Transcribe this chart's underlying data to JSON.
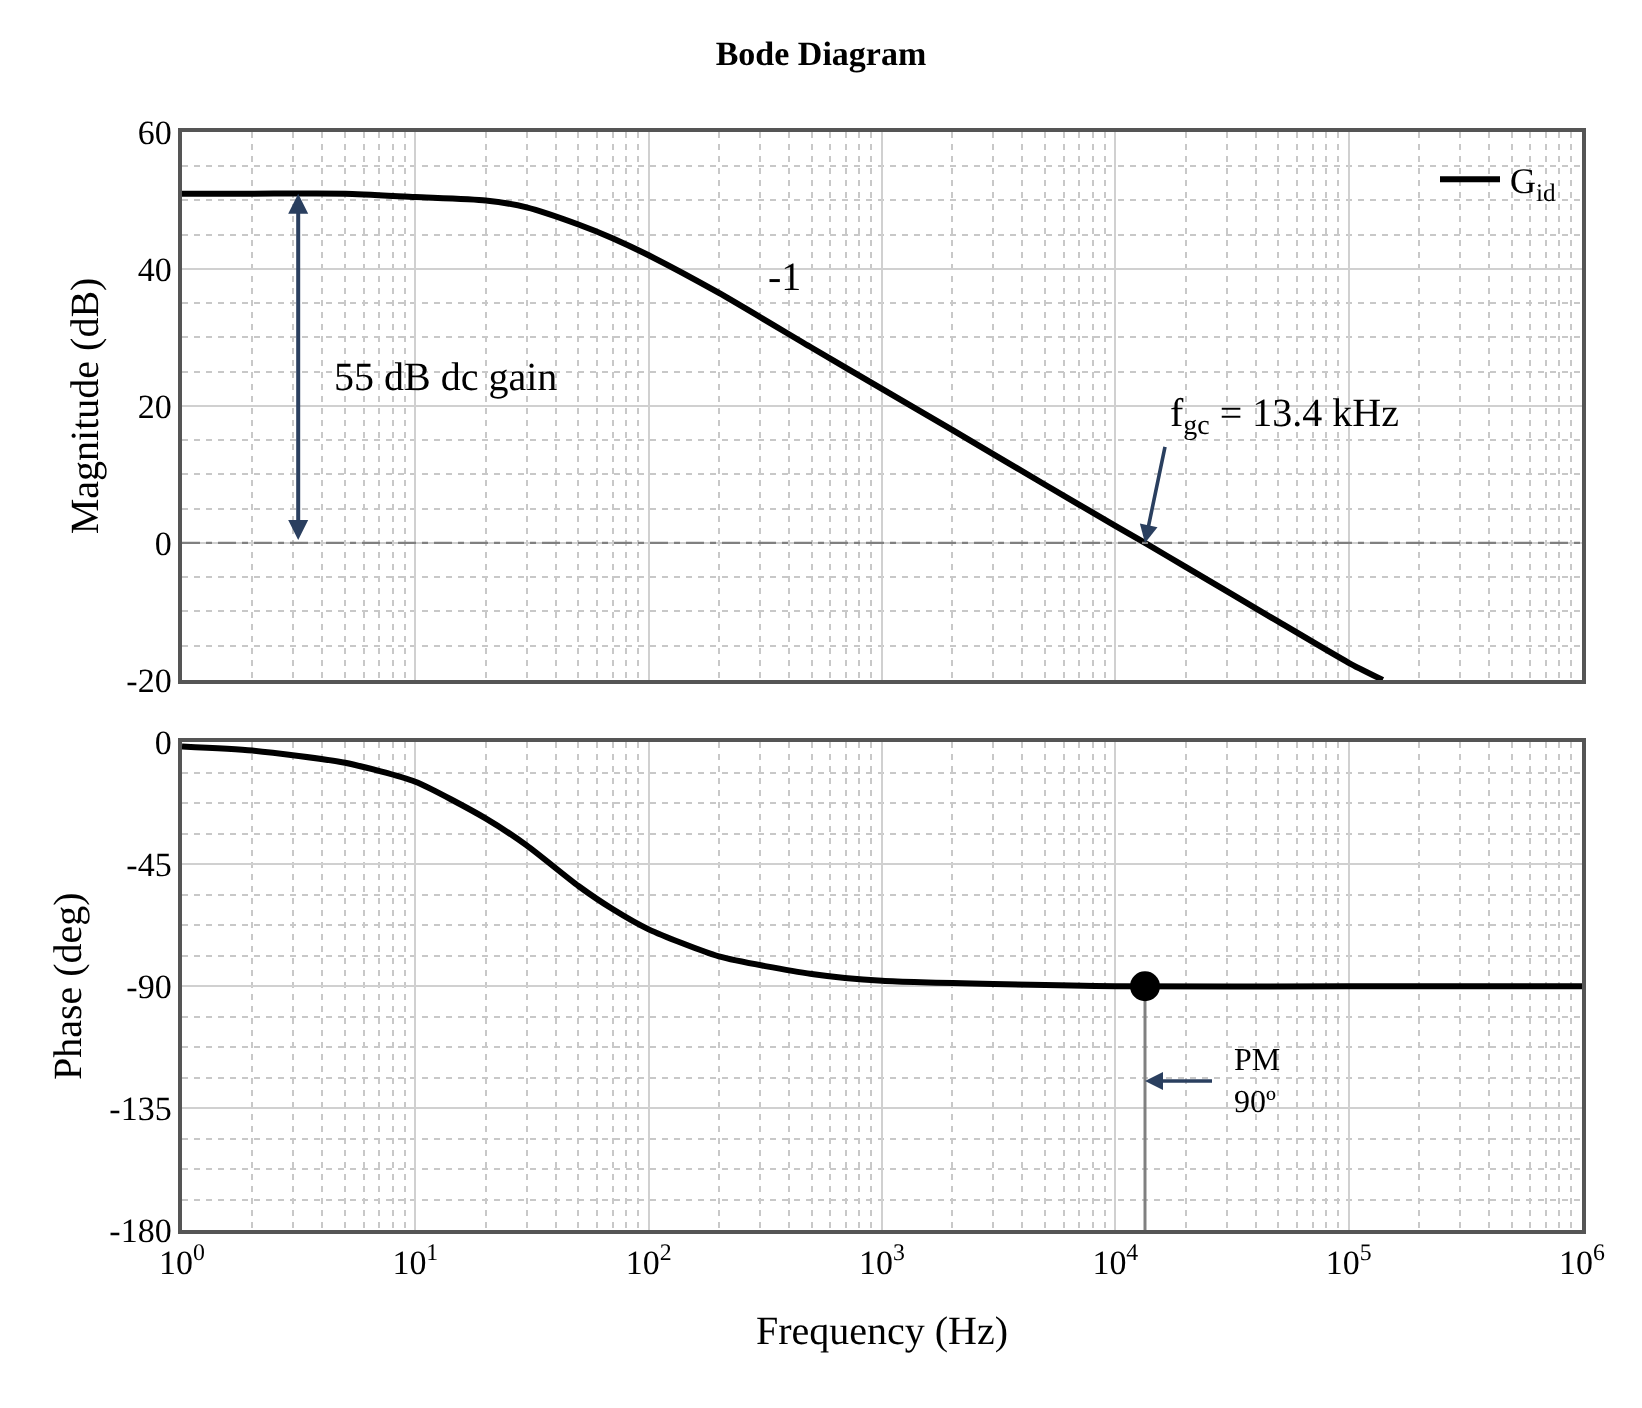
{
  "chart_data": [
    {
      "type": "line",
      "title": "Bode Diagram",
      "ylabel": "Magnitude (dB)",
      "log": "x",
      "grid": true,
      "legend": "top right",
      "tick_labels": "y",
      "marker": "none",
      "line_style": "solid",
      "xlim": [
        1,
        1000000
      ],
      "xticks": [
        {
          "value": 1,
          "label": null
        },
        {
          "value": 10,
          "label": null
        },
        {
          "value": 100,
          "label": null
        },
        {
          "value": 1000,
          "label": null
        },
        {
          "value": 10000,
          "label": null
        },
        {
          "value": 100000,
          "label": null
        },
        {
          "value": 1000000,
          "label": null
        }
      ],
      "ylim": [
        -20,
        60
      ],
      "yticks": [
        -20,
        0,
        20,
        40,
        60
      ],
      "series": [
        {
          "name": "G$_{id}$",
          "color": "#000000",
          "x": [
            1,
            2,
            5,
            10,
            20,
            30,
            50,
            70,
            100,
            200,
            500,
            1000,
            2000,
            5000,
            10000,
            13400,
            20000,
            50000,
            100000,
            140000
          ],
          "values": [
            51,
            51,
            51,
            50.5,
            50,
            49,
            46.5,
            44.5,
            42,
            36.5,
            28.5,
            22.5,
            16.5,
            8.5,
            2.5,
            0,
            -3.5,
            -11.5,
            -17.5,
            -20
          ]
        }
      ],
      "ref_lines": [
        {
          "axis": "y",
          "value": 0,
          "color": "#808080",
          "line_style": "dashdot"
        }
      ],
      "annotations": [
        "55 dB dc gain",
        "-1",
        {
          "text": "f$_{gc}$ = 13.4 kHz",
          "x": 13400,
          "y": 0
        }
      ]
    },
    {
      "type": "line",
      "ylabel": "Phase (deg)",
      "xlabel": "Frequency (Hz)",
      "log": "x",
      "grid": true,
      "marker": "none",
      "line_style": "solid",
      "xlim": [
        1,
        1000000
      ],
      "xticks": [
        {
          "value": 1,
          "label": "10$^{0}$"
        },
        {
          "value": 10,
          "label": "10$^{1}$"
        },
        {
          "value": 100,
          "label": "10$^{2}$"
        },
        {
          "value": 1000,
          "label": "10$^{3}$"
        },
        {
          "value": 10000,
          "label": "10$^{4}$"
        },
        {
          "value": 100000,
          "label": "10$^{5}$"
        },
        {
          "value": 1000000,
          "label": "10$^{6}$"
        }
      ],
      "ylim": [
        -180,
        0
      ],
      "yticks": [
        -180,
        -135,
        -90,
        -45,
        0
      ],
      "series": [
        {
          "color": "#000000",
          "x": [
            1,
            2,
            5,
            10,
            20,
            30,
            50,
            70,
            100,
            200,
            500,
            1000,
            10000,
            100000,
            1000000
          ],
          "values": [
            -1.5,
            -3,
            -7.5,
            -14.5,
            -28,
            -38,
            -53,
            -61.5,
            -69,
            -79,
            -85.5,
            -88,
            -90,
            -90,
            -90
          ]
        },
        {
          "color": "#808080",
          "x": [
            13400,
            13400
          ],
          "values": [
            -180,
            -90
          ]
        },
        {
          "type": "scatter",
          "marker": "circle",
          "color": "#000000",
          "x": [
            13400
          ],
          "values": [
            -90
          ]
        }
      ],
      "annotations": [
        {
          "text": "PM\n90º",
          "x": 13400,
          "y": -125
        }
      ]
    }
  ]
}
